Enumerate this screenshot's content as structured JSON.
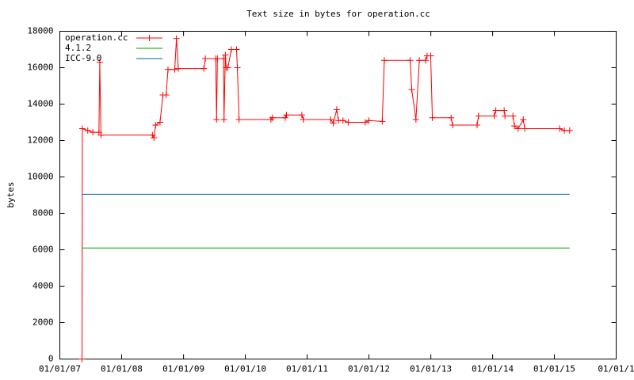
{
  "chart_data": {
    "type": "line",
    "title": "Text size in bytes for operation.cc",
    "ylabel": "bytes",
    "xlim": [
      "2007-01-01",
      "2016-01-01"
    ],
    "xticks": [
      {
        "value": "2007-01-01",
        "label": "01/01/07"
      },
      {
        "value": "2008-01-01",
        "label": "01/01/08"
      },
      {
        "value": "2009-01-01",
        "label": "01/01/09"
      },
      {
        "value": "2010-01-01",
        "label": "01/01/10"
      },
      {
        "value": "2011-01-01",
        "label": "01/01/11"
      },
      {
        "value": "2012-01-01",
        "label": "01/01/12"
      },
      {
        "value": "2013-01-01",
        "label": "01/01/13"
      },
      {
        "value": "2014-01-01",
        "label": "01/01/14"
      },
      {
        "value": "2015-01-01",
        "label": "01/01/15"
      },
      {
        "value": "2016-01-01",
        "label": "01/01/1"
      }
    ],
    "ylim": [
      0,
      18000
    ],
    "yticks": [
      0,
      2000,
      4000,
      6000,
      8000,
      10000,
      12000,
      14000,
      16000,
      18000
    ],
    "grid": false,
    "legend": "top-left",
    "series": [
      {
        "name": "operation.cc",
        "color": "#ff0000",
        "marker": "+",
        "x": [
          "2007-05-12",
          "2007-05-14",
          "2007-06-15",
          "2007-07-15",
          "2007-08-20",
          "2007-08-25",
          "2007-09-01",
          "2008-07-01",
          "2008-07-10",
          "2008-07-20",
          "2008-08-15",
          "2008-09-01",
          "2008-09-20",
          "2008-10-01",
          "2008-11-10",
          "2008-11-20",
          "2008-12-01",
          "2009-05-01",
          "2009-05-10",
          "2009-07-10",
          "2009-07-15",
          "2009-07-20",
          "2009-08-25",
          "2009-08-28",
          "2009-09-05",
          "2009-09-10",
          "2009-09-20",
          "2009-10-10",
          "2009-11-10",
          "2009-11-15",
          "2009-11-25",
          "2010-06-01",
          "2010-06-10",
          "2010-08-25",
          "2010-09-01",
          "2010-12-01",
          "2010-12-10",
          "2011-05-20",
          "2011-06-05",
          "2011-06-25",
          "2011-07-05",
          "2011-08-01",
          "2011-09-01",
          "2011-12-10",
          "2012-01-01",
          "2012-03-20",
          "2012-04-01",
          "2012-09-01",
          "2012-09-10",
          "2012-10-05",
          "2012-10-25",
          "2012-12-01",
          "2012-12-10",
          "2012-12-31",
          "2013-01-10",
          "2013-05-01",
          "2013-05-10",
          "2013-10-01",
          "2013-10-10",
          "2014-01-10",
          "2014-01-20",
          "2014-03-10",
          "2014-03-15",
          "2014-05-01",
          "2014-05-10",
          "2014-06-01",
          "2014-07-01",
          "2014-07-10",
          "2015-02-01",
          "2015-03-01",
          "2015-04-01"
        ],
        "values": [
          0,
          12650,
          12550,
          12450,
          12450,
          16300,
          12300,
          12300,
          12150,
          12850,
          13000,
          14500,
          14500,
          15900,
          15900,
          17600,
          15950,
          15950,
          16500,
          16500,
          13150,
          16500,
          16500,
          13150,
          16700,
          16000,
          16000,
          17000,
          17000,
          16000,
          13150,
          13150,
          13250,
          13250,
          13400,
          13400,
          13150,
          13150,
          12950,
          13700,
          13100,
          13100,
          13000,
          13000,
          13100,
          13050,
          16400,
          16400,
          14800,
          13150,
          16400,
          16400,
          16650,
          16650,
          13250,
          13250,
          12850,
          12850,
          13350,
          13350,
          13650,
          13650,
          13350,
          13350,
          12800,
          12650,
          13150,
          12650,
          12650,
          12550,
          12550
        ]
      },
      {
        "name": "4.1.2",
        "color": "#00a000",
        "x": [
          "2007-05-12",
          "2015-04-01"
        ],
        "values": [
          6100,
          6100
        ]
      },
      {
        "name": "ICC-9.0",
        "color": "#0060ad",
        "x": [
          "2007-05-12",
          "2015-04-01"
        ],
        "values": [
          9050,
          9050
        ]
      }
    ]
  }
}
